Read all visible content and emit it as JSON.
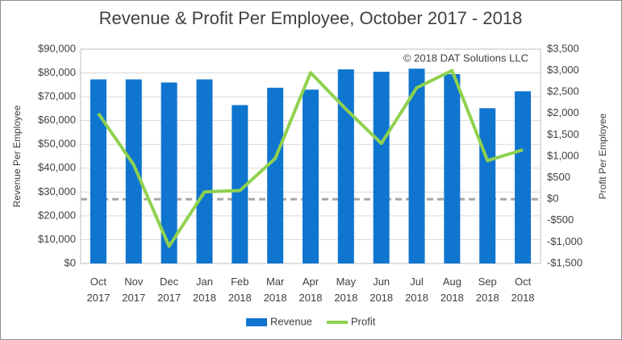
{
  "chart_data": {
    "type": "bar-line",
    "title": "Revenue & Profit Per Employee, October 2017 - 2018",
    "annotation": "© 2018 DAT Solutions LLC",
    "ylabel": "Revenue Per Employee",
    "y2label": "Profit Per Employee",
    "categories": [
      "Oct 2017",
      "Nov 2017",
      "Dec 2017",
      "Jan 2018",
      "Feb 2018",
      "Mar 2018",
      "Apr 2018",
      "May 2018",
      "Jun 2018",
      "Jul 2018",
      "Aug 2018",
      "Sep 2018",
      "Oct 2018"
    ],
    "series": [
      {
        "name": "Revenue",
        "type": "bar",
        "color": "#0f75cf",
        "values": [
          77300,
          77300,
          76000,
          77300,
          66500,
          73800,
          73000,
          81500,
          80500,
          81800,
          79500,
          65200,
          72300
        ]
      },
      {
        "name": "Profit",
        "type": "line",
        "axis": "y2",
        "color": "#8fd14f",
        "values": [
          2000,
          800,
          -1100,
          170,
          200,
          950,
          2950,
          2100,
          1300,
          2600,
          3000,
          900,
          1150
        ]
      }
    ],
    "ylim": [
      0,
      90000
    ],
    "yticks": [
      {
        "value": 0,
        "label": "$0"
      },
      {
        "value": 10000,
        "label": "$10,000"
      },
      {
        "value": 20000,
        "label": "$20,000"
      },
      {
        "value": 30000,
        "label": "$30,000"
      },
      {
        "value": 40000,
        "label": "$40,000"
      },
      {
        "value": 50000,
        "label": "$50,000"
      },
      {
        "value": 60000,
        "label": "$60,000"
      },
      {
        "value": 70000,
        "label": "$70,000"
      },
      {
        "value": 80000,
        "label": "$80,000"
      },
      {
        "value": 90000,
        "label": "$90,000"
      }
    ],
    "y2lim": [
      -1500,
      3500
    ],
    "y2ticks": [
      {
        "value": -1500,
        "label": "-$1,500"
      },
      {
        "value": -1000,
        "label": "-$1,000"
      },
      {
        "value": -500,
        "label": "-$500"
      },
      {
        "value": 0,
        "label": "$0"
      },
      {
        "value": 500,
        "label": "$500"
      },
      {
        "value": 1000,
        "label": "$1,000"
      },
      {
        "value": 1500,
        "label": "$1,500"
      },
      {
        "value": 2000,
        "label": "$2,000"
      },
      {
        "value": 2500,
        "label": "$2,500"
      },
      {
        "value": 3000,
        "label": "$3,000"
      },
      {
        "value": 3500,
        "label": "$3,500"
      }
    ],
    "grid": true,
    "legend": "bottom"
  }
}
